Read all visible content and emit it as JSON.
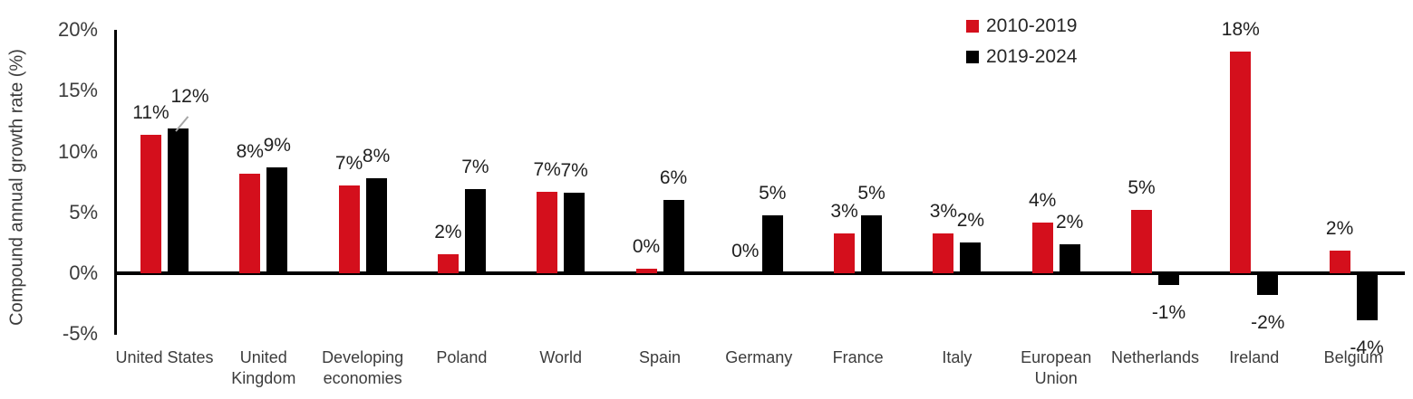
{
  "chart_data": {
    "type": "bar",
    "title": "",
    "ylabel": "Compound annual growth rate (%)",
    "xlabel": "",
    "categories": [
      "United States",
      "United Kingdom",
      "Developing economies",
      "Poland",
      "World",
      "Spain",
      "Germany",
      "France",
      "Italy",
      "European Union",
      "Netherlands",
      "Ireland",
      "Belgium"
    ],
    "series": [
      {
        "name": "2010-2019",
        "color": "#d40f1c",
        "values": [
          11.4,
          8.2,
          7.2,
          1.6,
          6.7,
          0.4,
          0.0,
          3.3,
          3.3,
          4.2,
          5.2,
          18.2,
          1.9
        ],
        "labels": [
          "11%",
          "8%",
          "7%",
          "2%",
          "7%",
          "0%",
          "0%",
          "3%",
          "3%",
          "4%",
          "5%",
          "18%",
          "2%"
        ]
      },
      {
        "name": "2019-2024",
        "color": "#000000",
        "values": [
          11.9,
          8.7,
          7.8,
          6.9,
          6.6,
          6.0,
          4.8,
          4.8,
          2.5,
          2.4,
          -0.8,
          -1.6,
          -3.7
        ],
        "labels": [
          "12%",
          "9%",
          "8%",
          "7%",
          "7%",
          "6%",
          "5%",
          "5%",
          "2%",
          "2%",
          "-1%",
          "-2%",
          "-4%"
        ]
      }
    ],
    "y_ticks": [
      "20%",
      "15%",
      "10%",
      "5%",
      "0%",
      "-5%"
    ],
    "y_tick_values": [
      20,
      15,
      10,
      5,
      0,
      -5
    ],
    "ylim": [
      -5,
      20
    ],
    "grid": false,
    "legend_position": "top-right",
    "annotations": [
      {
        "category": "United States",
        "series": "2019-2024",
        "label_dx": 13,
        "label_dy": -11,
        "leader": true,
        "leader_color": "#a6a6a6"
      }
    ]
  },
  "colors": {
    "background": "#ffffff",
    "axis": "#000000",
    "tick_text": "#3c3c3c",
    "category_text": "#3c3c3c",
    "data_label_text": "#1f1f1f",
    "leader_line": "#a6a6a6"
  }
}
